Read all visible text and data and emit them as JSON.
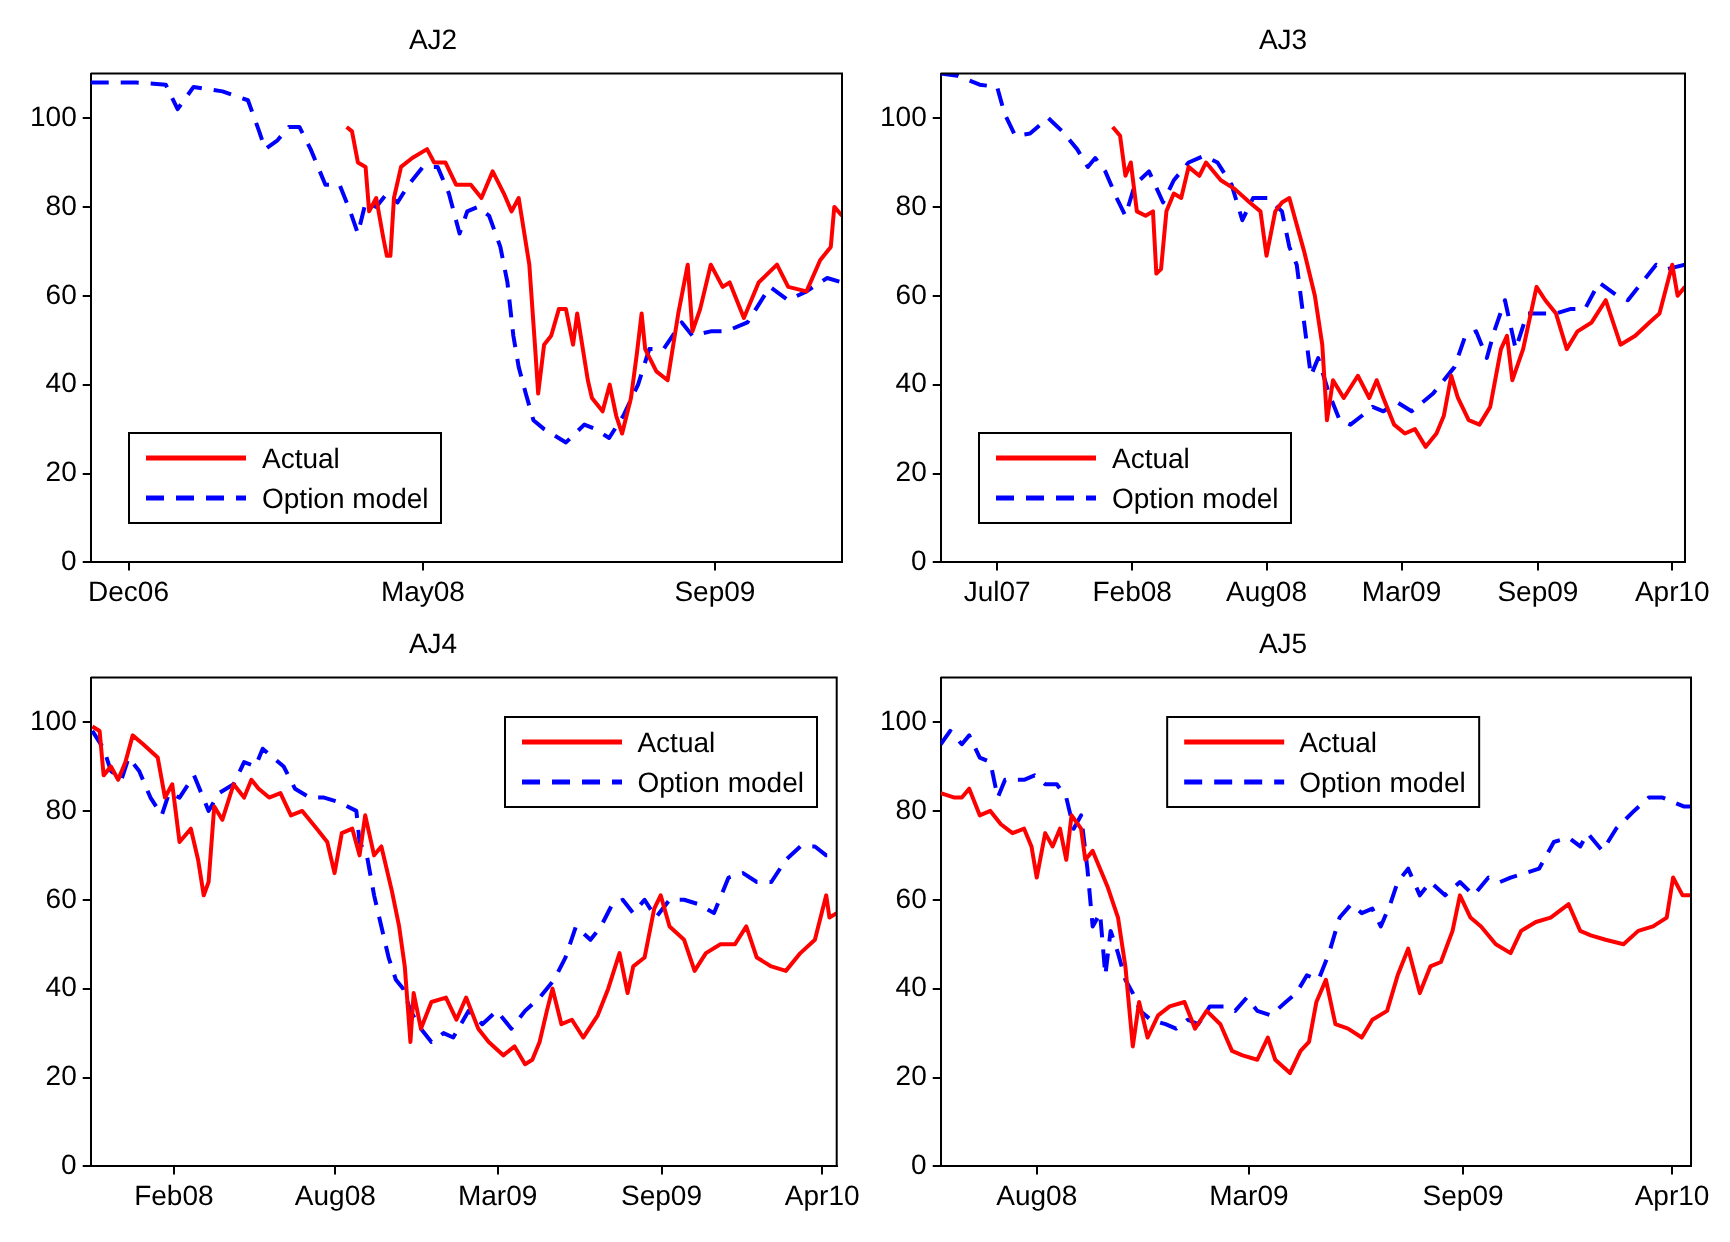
{
  "chart_data": [
    {
      "type": "line",
      "title": "AJ2",
      "xlim": [
        "2006-10-17",
        "2010-04-10"
      ],
      "ylim": [
        0,
        110
      ],
      "yticks": [
        0,
        20,
        40,
        60,
        80,
        100
      ],
      "xticks": [
        {
          "value": "2006-12-20",
          "label": "Dec06"
        },
        {
          "value": "2008-05-01",
          "label": "May08"
        },
        {
          "value": "2009-09-07",
          "label": "Sep09"
        }
      ],
      "grid": false,
      "legend": "bottom left",
      "marker": "none",
      "series": [
        {
          "name": "Actual",
          "color": "#ff0000",
          "line_style": "solid",
          "x": [
            "2007-12-24",
            "2008-01-02",
            "2008-01-12",
            "2008-01-25",
            "2008-01-31",
            "2008-02-12",
            "2008-02-24",
            "2008-03-01",
            "2008-03-07",
            "2008-03-13",
            "2008-03-25",
            "2008-04-13",
            "2008-05-08",
            "2008-05-20",
            "2008-06-08",
            "2008-06-26",
            "2008-07-21",
            "2008-08-08",
            "2008-08-27",
            "2008-09-15",
            "2008-09-28",
            "2008-10-10",
            "2008-10-28",
            "2008-11-07",
            "2008-11-12",
            "2008-11-22",
            "2008-12-04",
            "2008-12-17",
            "2008-12-29",
            "2009-01-10",
            "2009-01-17",
            "2009-02-04",
            "2009-02-11",
            "2009-03-01",
            "2009-03-13",
            "2009-03-24",
            "2009-04-03",
            "2009-04-18",
            "2009-04-28",
            "2009-05-06",
            "2009-05-12",
            "2009-05-31",
            "2009-06-19",
            "2009-07-07",
            "2009-07-23",
            "2009-07-31",
            "2009-08-13",
            "2009-08-31",
            "2009-09-20",
            "2009-10-02",
            "2009-10-26",
            "2009-11-20",
            "2009-12-21",
            "2010-01-09",
            "2010-02-09",
            "2010-03-04",
            "2010-03-22",
            "2010-03-28",
            "2010-04-10"
          ],
          "values": [
            98,
            97,
            90,
            89,
            79,
            82,
            73,
            69,
            69,
            82,
            89,
            91,
            93,
            90,
            90,
            85,
            85,
            82,
            88,
            83,
            79,
            82,
            67,
            48,
            38,
            49,
            51,
            57,
            57,
            49,
            56,
            41,
            37,
            34,
            40,
            33,
            29,
            37,
            47,
            56,
            48,
            43,
            41,
            56,
            67,
            52,
            57,
            67,
            62,
            63,
            55,
            63,
            67,
            62,
            61,
            68,
            71,
            80,
            78
          ]
        },
        {
          "name": "Option model",
          "color": "#0000ff",
          "line_style": "dashed",
          "x": [
            "2006-10-17",
            "2007-01-02",
            "2007-02-21",
            "2007-03-13",
            "2007-04-09",
            "2007-05-28",
            "2007-07-10",
            "2007-07-29",
            "2007-08-08",
            "2007-08-29",
            "2007-09-17",
            "2007-10-05",
            "2007-10-24",
            "2007-11-18",
            "2007-12-12",
            "2007-12-30",
            "2008-01-12",
            "2008-01-25",
            "2008-02-12",
            "2008-03-01",
            "2008-03-19",
            "2008-04-07",
            "2008-05-01",
            "2008-05-26",
            "2008-06-14",
            "2008-07-02",
            "2008-07-15",
            "2008-08-02",
            "2008-08-21",
            "2008-09-09",
            "2008-09-21",
            "2008-10-01",
            "2008-10-10",
            "2008-10-22",
            "2008-11-04",
            "2008-11-22",
            "2008-12-29",
            "2009-01-29",
            "2009-02-17",
            "2009-03-12",
            "2009-04-05",
            "2009-04-30",
            "2009-05-19",
            "2009-06-12",
            "2009-07-13",
            "2009-07-31",
            "2009-08-31",
            "2009-09-26",
            "2009-11-01",
            "2009-12-09",
            "2010-01-09",
            "2010-02-09",
            "2010-03-16",
            "2010-04-10"
          ],
          "values": [
            108,
            108,
            107.5,
            102,
            107,
            106,
            104,
            97,
            93,
            95,
            98,
            98,
            93,
            85,
            85,
            79,
            74,
            81,
            80,
            83,
            81,
            85,
            89,
            89,
            83,
            74,
            79,
            80,
            78,
            71,
            63,
            51,
            44,
            38,
            32,
            30,
            27,
            31,
            30,
            28,
            33,
            40,
            48,
            48,
            54,
            51,
            52,
            52,
            54,
            62,
            59,
            61,
            64,
            63
          ]
        }
      ]
    },
    {
      "type": "line",
      "title": "AJ3",
      "xlim": [
        "2007-04-22",
        "2010-05-04"
      ],
      "ylim": [
        0,
        110
      ],
      "yticks": [
        0,
        20,
        40,
        60,
        80,
        100
      ],
      "xticks": [
        {
          "value": "2007-07-15",
          "label": "Jul07"
        },
        {
          "value": "2008-02-01",
          "label": "Feb08"
        },
        {
          "value": "2008-08-19",
          "label": "Aug08"
        },
        {
          "value": "2009-03-08",
          "label": "Mar09"
        },
        {
          "value": "2009-09-27",
          "label": "Sep09"
        },
        {
          "value": "2010-04-15",
          "label": "Apr10"
        }
      ],
      "grid": false,
      "legend": "bottom left",
      "marker": "none",
      "series": [
        {
          "name": "Actual",
          "color": "#ff0000",
          "line_style": "solid",
          "x": [
            "2008-01-03",
            "2008-01-14",
            "2008-01-22",
            "2008-01-30",
            "2008-02-08",
            "2008-02-21",
            "2008-03-03",
            "2008-03-08",
            "2008-03-15",
            "2008-03-23",
            "2008-04-03",
            "2008-04-14",
            "2008-04-25",
            "2008-05-11",
            "2008-05-21",
            "2008-06-12",
            "2008-07-03",
            "2008-07-25",
            "2008-08-10",
            "2008-08-19",
            "2008-09-01",
            "2008-09-11",
            "2008-09-22",
            "2008-10-03",
            "2008-10-14",
            "2008-10-30",
            "2008-11-10",
            "2008-11-17",
            "2008-11-26",
            "2008-12-12",
            "2009-01-02",
            "2009-01-19",
            "2009-01-30",
            "2009-02-09",
            "2009-02-25",
            "2009-03-13",
            "2009-03-28",
            "2009-04-13",
            "2009-04-29",
            "2009-05-10",
            "2009-05-21",
            "2009-05-31",
            "2009-06-16",
            "2009-07-02",
            "2009-07-18",
            "2009-08-03",
            "2009-08-12",
            "2009-08-20",
            "2009-09-05",
            "2009-09-25",
            "2009-10-08",
            "2009-10-24",
            "2009-11-09",
            "2009-11-25",
            "2009-12-16",
            "2010-01-06",
            "2010-01-28",
            "2010-02-19",
            "2010-03-12",
            "2010-03-27",
            "2010-04-15",
            "2010-04-23",
            "2010-05-04"
          ],
          "values": [
            98,
            96,
            87,
            90,
            79,
            78,
            79,
            65,
            66,
            79,
            83,
            82,
            89,
            87,
            90,
            86,
            84,
            81,
            79,
            69,
            79,
            81,
            82,
            76,
            70,
            60,
            49,
            32,
            41,
            37,
            42,
            37,
            41,
            37,
            31,
            29,
            30,
            26,
            29,
            33,
            42,
            37,
            32,
            31,
            35,
            48,
            51,
            41,
            48,
            62,
            59,
            56,
            48,
            52,
            54,
            59,
            49,
            51,
            54,
            56,
            67,
            60,
            62
          ]
        },
        {
          "name": "Option model",
          "color": "#0000ff",
          "line_style": "dashed",
          "x": [
            "2007-04-22",
            "2007-05-17",
            "2007-06-19",
            "2007-07-15",
            "2007-07-26",
            "2007-08-11",
            "2007-09-02",
            "2007-09-29",
            "2007-10-20",
            "2007-11-11",
            "2007-11-27",
            "2007-12-08",
            "2007-12-23",
            "2008-01-09",
            "2008-01-22",
            "2008-02-05",
            "2008-02-26",
            "2008-03-18",
            "2008-04-03",
            "2008-04-25",
            "2008-05-18",
            "2008-06-07",
            "2008-06-28",
            "2008-07-14",
            "2008-07-30",
            "2008-08-21",
            "2008-09-11",
            "2008-09-22",
            "2008-10-03",
            "2008-10-14",
            "2008-10-24",
            "2008-11-04",
            "2008-11-20",
            "2008-12-06",
            "2008-12-22",
            "2009-01-08",
            "2009-01-24",
            "2009-02-09",
            "2009-03-02",
            "2009-03-23",
            "2009-04-08",
            "2009-04-24",
            "2009-05-10",
            "2009-05-26",
            "2009-06-11",
            "2009-06-27",
            "2009-07-13",
            "2009-07-24",
            "2009-08-09",
            "2009-08-25",
            "2009-09-11",
            "2009-10-02",
            "2009-10-24",
            "2009-11-14",
            "2009-12-06",
            "2009-12-27",
            "2010-01-23",
            "2010-02-08",
            "2010-03-01",
            "2010-03-22",
            "2010-04-07",
            "2010-05-04"
          ],
          "values": [
            110,
            109.5,
            107.5,
            107,
            101,
            96,
            96.5,
            100,
            97,
            93,
            89,
            91,
            88,
            82,
            78,
            85,
            88,
            81,
            86,
            90,
            91.5,
            90,
            85,
            77,
            82,
            82,
            79,
            71,
            67,
            54,
            42,
            46,
            38,
            32,
            31,
            33,
            35,
            34,
            36,
            34,
            36,
            38,
            41,
            44,
            51,
            52,
            46,
            52,
            59,
            48,
            56,
            56,
            56,
            57,
            57,
            63,
            60,
            59,
            63,
            67,
            66,
            67
          ]
        }
      ]
    },
    {
      "type": "line",
      "title": "AJ4",
      "xlim": [
        "2007-10-21",
        "2010-05-02"
      ],
      "ylim": [
        0,
        110
      ],
      "yticks": [
        0,
        20,
        40,
        60,
        80,
        100
      ],
      "xticks": [
        {
          "value": "2008-02-01",
          "label": "Feb08"
        },
        {
          "value": "2008-08-19",
          "label": "Aug08"
        },
        {
          "value": "2009-03-08",
          "label": "Mar09"
        },
        {
          "value": "2009-09-27",
          "label": "Sep09"
        },
        {
          "value": "2010-04-14",
          "label": "Apr10"
        }
      ],
      "grid": false,
      "legend": "top right",
      "marker": "none",
      "series": [
        {
          "name": "Actual",
          "color": "#ff0000",
          "line_style": "solid",
          "x": [
            "2007-10-23",
            "2007-11-01",
            "2007-11-06",
            "2007-11-15",
            "2007-11-24",
            "2007-12-03",
            "2007-12-12",
            "2007-12-25",
            "2008-01-12",
            "2008-01-21",
            "2008-01-30",
            "2008-02-08",
            "2008-02-22",
            "2008-03-02",
            "2008-03-09",
            "2008-03-15",
            "2008-03-22",
            "2008-04-01",
            "2008-04-15",
            "2008-04-28",
            "2008-05-07",
            "2008-05-16",
            "2008-05-29",
            "2008-06-12",
            "2008-06-25",
            "2008-07-09",
            "2008-07-27",
            "2008-08-09",
            "2008-08-18",
            "2008-08-27",
            "2008-09-09",
            "2008-09-18",
            "2008-09-25",
            "2008-10-06",
            "2008-10-15",
            "2008-10-28",
            "2008-11-06",
            "2008-11-13",
            "2008-11-20",
            "2008-11-24",
            "2008-12-03",
            "2008-12-16",
            "2009-01-03",
            "2009-01-16",
            "2009-01-28",
            "2009-02-12",
            "2009-02-25",
            "2009-03-15",
            "2009-03-29",
            "2009-04-11",
            "2009-04-20",
            "2009-04-29",
            "2009-05-08",
            "2009-05-15",
            "2009-05-26",
            "2009-06-08",
            "2009-06-22",
            "2009-07-10",
            "2009-07-23",
            "2009-08-06",
            "2009-08-16",
            "2009-08-23",
            "2009-09-06",
            "2009-09-18",
            "2009-09-26",
            "2009-10-07",
            "2009-10-25",
            "2009-11-07",
            "2009-11-21",
            "2009-12-09",
            "2009-12-27",
            "2010-01-10",
            "2010-01-23",
            "2010-02-10",
            "2010-02-28",
            "2010-03-18",
            "2010-04-05",
            "2010-04-19",
            "2010-04-23",
            "2010-05-02"
          ],
          "values": [
            99,
            98,
            88,
            90,
            87,
            91,
            97,
            95,
            92,
            83,
            86,
            73,
            76,
            69,
            61,
            64,
            81,
            78,
            86,
            83,
            87,
            85,
            83,
            84,
            79,
            80,
            76,
            73,
            66,
            75,
            76,
            70,
            79,
            70,
            72,
            62,
            54,
            45,
            28,
            39,
            31,
            37,
            38,
            33,
            38,
            31,
            28,
            25,
            27,
            23,
            24,
            28,
            35,
            40,
            32,
            33,
            29,
            34,
            40,
            48,
            39,
            45,
            47,
            58,
            61,
            54,
            51,
            44,
            48,
            50,
            50,
            54,
            47,
            45,
            44,
            48,
            51,
            61,
            56,
            57
          ]
        },
        {
          "name": "Option model",
          "color": "#0000ff",
          "line_style": "dashed",
          "x": [
            "2007-10-23",
            "2007-11-06",
            "2007-11-15",
            "2007-11-28",
            "2007-12-07",
            "2007-12-20",
            "2008-01-03",
            "2008-01-17",
            "2008-01-26",
            "2008-02-08",
            "2008-02-26",
            "2008-03-15",
            "2008-03-28",
            "2008-04-15",
            "2008-04-28",
            "2008-05-12",
            "2008-05-21",
            "2008-06-03",
            "2008-06-16",
            "2008-06-30",
            "2008-07-18",
            "2008-08-05",
            "2008-08-23",
            "2008-09-14",
            "2008-09-18",
            "2008-09-27",
            "2008-10-06",
            "2008-10-15",
            "2008-10-24",
            "2008-11-02",
            "2008-11-11",
            "2008-11-20",
            "2008-12-03",
            "2008-12-16",
            "2008-12-31",
            "2009-01-12",
            "2009-01-31",
            "2009-02-17",
            "2009-03-07",
            "2009-03-25",
            "2009-04-11",
            "2009-04-29",
            "2009-05-17",
            "2009-05-31",
            "2009-06-13",
            "2009-07-01",
            "2009-07-14",
            "2009-07-28",
            "2009-08-10",
            "2009-08-23",
            "2009-09-06",
            "2009-09-20",
            "2009-10-07",
            "2009-10-25",
            "2009-11-12",
            "2009-12-01",
            "2009-12-19",
            "2010-01-06",
            "2010-01-23",
            "2010-02-10",
            "2010-02-28",
            "2010-03-18",
            "2010-04-05",
            "2010-04-19",
            "2010-05-02"
          ],
          "values": [
            98,
            94,
            89,
            87,
            92,
            89,
            83,
            79,
            84,
            83,
            88,
            80,
            84,
            86,
            91,
            90,
            94,
            92,
            90,
            85,
            83,
            83,
            82,
            80,
            73,
            70,
            61,
            54,
            47,
            42,
            40,
            35,
            31,
            28,
            30,
            29,
            35,
            32,
            35,
            31,
            35,
            38,
            42,
            47,
            54,
            51,
            54,
            59,
            60,
            57,
            60,
            56,
            60,
            60,
            59,
            57,
            65,
            66,
            64,
            64,
            69,
            72,
            72,
            70,
            70
          ]
        }
      ]
    },
    {
      "type": "line",
      "title": "AJ5",
      "xlim": [
        "2008-05-20",
        "2010-05-01"
      ],
      "ylim": [
        0,
        110
      ],
      "yticks": [
        0,
        20,
        40,
        60,
        80,
        100
      ],
      "xticks": [
        {
          "value": "2008-08-19",
          "label": "Aug08"
        },
        {
          "value": "2009-03-08",
          "label": "Mar09"
        },
        {
          "value": "2009-09-27",
          "label": "Sep09"
        },
        {
          "value": "2010-04-13",
          "label": "Apr10"
        }
      ],
      "grid": false,
      "legend": "top",
      "marker": "none",
      "series": [
        {
          "name": "Actual",
          "color": "#ff0000",
          "line_style": "solid",
          "x": [
            "2008-05-20",
            "2008-06-02",
            "2008-06-09",
            "2008-06-16",
            "2008-06-26",
            "2008-07-06",
            "2008-07-16",
            "2008-07-27",
            "2008-08-07",
            "2008-08-14",
            "2008-08-19",
            "2008-08-27",
            "2008-09-03",
            "2008-09-10",
            "2008-09-16",
            "2008-09-21",
            "2008-09-30",
            "2008-10-04",
            "2008-10-11",
            "2008-10-18",
            "2008-10-25",
            "2008-11-04",
            "2008-11-11",
            "2008-11-18",
            "2008-11-24",
            "2008-12-02",
            "2008-12-12",
            "2008-12-23",
            "2009-01-06",
            "2009-01-16",
            "2009-01-27",
            "2009-02-09",
            "2009-02-20",
            "2009-03-02",
            "2009-03-16",
            "2009-03-26",
            "2009-04-02",
            "2009-04-16",
            "2009-04-26",
            "2009-05-04",
            "2009-05-11",
            "2009-05-20",
            "2009-05-29",
            "2009-06-10",
            "2009-06-23",
            "2009-07-03",
            "2009-07-17",
            "2009-07-27",
            "2009-08-06",
            "2009-08-17",
            "2009-08-27",
            "2009-09-06",
            "2009-09-17",
            "2009-09-24",
            "2009-10-04",
            "2009-10-14",
            "2009-10-28",
            "2009-11-11",
            "2009-11-21",
            "2009-12-05",
            "2009-12-19",
            "2010-01-05",
            "2010-01-16",
            "2010-01-26",
            "2010-02-09",
            "2010-02-26",
            "2010-03-12",
            "2010-03-26",
            "2010-04-08",
            "2010-04-14",
            "2010-04-23",
            "2010-05-01"
          ],
          "values": [
            84,
            83,
            83,
            85,
            79,
            80,
            77,
            75,
            76,
            72,
            65,
            75,
            72,
            76,
            69,
            79,
            76,
            69,
            71,
            67,
            63,
            56,
            45,
            27,
            37,
            29,
            34,
            36,
            37,
            31,
            35,
            32,
            26,
            25,
            24,
            29,
            24,
            21,
            26,
            28,
            37,
            42,
            32,
            31,
            29,
            33,
            35,
            43,
            49,
            39,
            45,
            46,
            53,
            61,
            56,
            54,
            50,
            48,
            53,
            55,
            56,
            59,
            53,
            52,
            51,
            50,
            53,
            54,
            56,
            65,
            61,
            61
          ]
        },
        {
          "name": "Option model",
          "color": "#0000ff",
          "line_style": "dashed",
          "x": [
            "2008-05-20",
            "2008-05-29",
            "2008-06-09",
            "2008-06-16",
            "2008-06-26",
            "2008-07-06",
            "2008-07-13",
            "2008-07-20",
            "2008-08-07",
            "2008-08-17",
            "2008-08-27",
            "2008-09-07",
            "2008-09-16",
            "2008-09-23",
            "2008-09-30",
            "2008-10-06",
            "2008-10-11",
            "2008-10-18",
            "2008-10-23",
            "2008-10-28",
            "2008-11-04",
            "2008-11-11",
            "2008-11-18",
            "2008-11-25",
            "2008-12-05",
            "2008-12-19",
            "2008-12-29",
            "2009-01-09",
            "2009-01-19",
            "2009-01-30",
            "2009-02-13",
            "2009-02-23",
            "2009-03-06",
            "2009-03-16",
            "2009-03-29",
            "2009-04-12",
            "2009-04-22",
            "2009-05-02",
            "2009-05-13",
            "2009-05-23",
            "2009-06-02",
            "2009-06-13",
            "2009-06-23",
            "2009-07-03",
            "2009-07-11",
            "2009-07-20",
            "2009-07-27",
            "2009-08-06",
            "2009-08-17",
            "2009-08-27",
            "2009-09-10",
            "2009-09-24",
            "2009-10-07",
            "2009-10-21",
            "2009-11-01",
            "2009-11-11",
            "2009-11-25",
            "2009-12-08",
            "2009-12-22",
            "2010-01-05",
            "2010-01-16",
            "2010-01-23",
            "2010-02-06",
            "2010-02-19",
            "2010-03-08",
            "2010-03-22",
            "2010-04-04",
            "2010-04-14",
            "2010-04-24",
            "2010-05-01"
          ],
          "values": [
            95,
            98,
            95,
            97,
            92,
            91,
            83,
            87,
            87,
            88,
            86,
            86,
            83,
            76,
            79,
            67,
            54,
            57,
            43,
            53,
            48,
            42,
            39,
            35,
            33,
            32,
            31,
            33,
            32,
            36,
            36,
            35,
            38,
            35,
            34,
            37,
            39,
            43,
            42,
            48,
            56,
            59,
            57,
            58,
            54,
            59,
            64,
            67,
            61,
            64,
            61,
            64,
            61,
            65,
            64,
            65,
            66,
            67,
            73,
            74,
            72,
            75,
            71,
            76,
            80,
            83,
            83,
            82,
            81,
            81
          ]
        }
      ]
    }
  ]
}
